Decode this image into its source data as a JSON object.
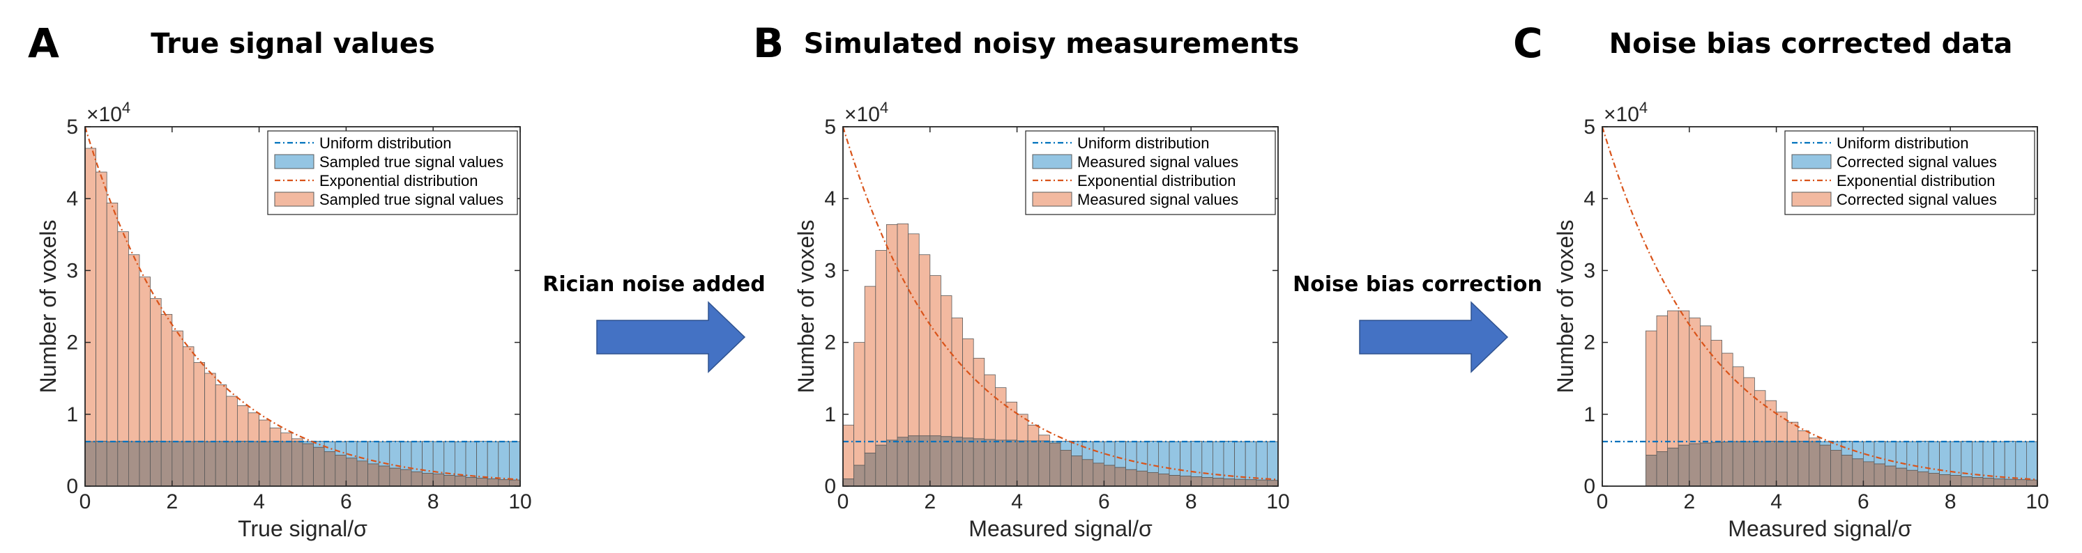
{
  "colors": {
    "uniform_line": "#0072BD",
    "uniform_bar": "#94C5E3",
    "exponential_line": "#D95319",
    "exponential_bar": "#F2B9A0",
    "overlap_bar": "#A69188",
    "arrow": "#4472C4"
  },
  "arrows": [
    {
      "label": "Rician noise added",
      "icon": "right-arrow-icon"
    },
    {
      "label": "Noise bias correction",
      "icon": "right-arrow-icon"
    }
  ],
  "chart_data": [
    {
      "type": "bar",
      "panel_label": "A",
      "title": "True signal values",
      "xlabel": "True signal/σ",
      "ylabel": "Number of voxels",
      "xlim": [
        0,
        10
      ],
      "ylim": [
        0,
        50000
      ],
      "yexponent": "×10",
      "yexponent_power": "4",
      "xticks": [
        "0",
        "2",
        "4",
        "6",
        "8",
        "10"
      ],
      "yticks": [
        "0",
        "1",
        "2",
        "3",
        "4",
        "5"
      ],
      "bin_width": 0.25,
      "x": [
        0.125,
        0.375,
        0.625,
        0.875,
        1.125,
        1.375,
        1.625,
        1.875,
        2.125,
        2.375,
        2.625,
        2.875,
        3.125,
        3.375,
        3.625,
        3.875,
        4.125,
        4.375,
        4.625,
        4.875,
        5.125,
        5.375,
        5.625,
        5.875,
        6.125,
        6.375,
        6.625,
        6.875,
        7.125,
        7.375,
        7.625,
        7.875,
        8.125,
        8.375,
        8.625,
        8.875,
        9.125,
        9.375,
        9.625,
        9.875
      ],
      "series": [
        {
          "name": "Sampled true signal values",
          "kind": "uniform",
          "values": [
            6200,
            6250,
            6180,
            6230,
            6210,
            6190,
            6240,
            6220,
            6200,
            6210,
            6230,
            6190,
            6220,
            6200,
            6250,
            6210,
            6190,
            6230,
            6200,
            6220,
            6210,
            6240,
            6190,
            6200,
            6230,
            6210,
            6220,
            6190,
            6240,
            6200,
            6210,
            6230,
            6200,
            6220,
            6190,
            6210,
            6240,
            6200,
            6220,
            6210
          ]
        },
        {
          "name": "Sampled true signal values",
          "kind": "exponential",
          "values": [
            47000,
            43700,
            39400,
            35400,
            32200,
            29100,
            26100,
            23900,
            21600,
            19400,
            17200,
            15700,
            14100,
            12500,
            11200,
            10200,
            9200,
            8100,
            7400,
            6600,
            5900,
            5400,
            4800,
            4300,
            3900,
            3500,
            3100,
            2800,
            2500,
            2300,
            2000,
            1800,
            1700,
            1500,
            1400,
            1200,
            1100,
            1000,
            900,
            850
          ]
        }
      ],
      "curves": [
        {
          "name": "Uniform distribution",
          "kind": "uniform",
          "constant": 6200
        },
        {
          "name": "Exponential distribution",
          "kind": "exponential",
          "amplitude": 50000,
          "rate": 0.4
        }
      ],
      "legend": [
        "Uniform distribution",
        "Sampled true signal values",
        "Exponential distribution",
        "Sampled true signal values"
      ],
      "legend_position": "top-right"
    },
    {
      "type": "bar",
      "panel_label": "B",
      "title": "Simulated noisy measurements",
      "xlabel": "Measured signal/σ",
      "ylabel": "Number of voxels",
      "xlim": [
        0,
        10
      ],
      "ylim": [
        0,
        50000
      ],
      "yexponent": "×10",
      "yexponent_power": "4",
      "xticks": [
        "0",
        "2",
        "4",
        "6",
        "8",
        "10"
      ],
      "yticks": [
        "0",
        "1",
        "2",
        "3",
        "4",
        "5"
      ],
      "bin_width": 0.25,
      "x": [
        0.125,
        0.375,
        0.625,
        0.875,
        1.125,
        1.375,
        1.625,
        1.875,
        2.125,
        2.375,
        2.625,
        2.875,
        3.125,
        3.375,
        3.625,
        3.875,
        4.125,
        4.375,
        4.625,
        4.875,
        5.125,
        5.375,
        5.625,
        5.875,
        6.125,
        6.375,
        6.625,
        6.875,
        7.125,
        7.375,
        7.625,
        7.875,
        8.125,
        8.375,
        8.625,
        8.875,
        9.125,
        9.375,
        9.625,
        9.875
      ],
      "series": [
        {
          "name": "Measured signal values",
          "kind": "uniform",
          "values": [
            1000,
            2900,
            4600,
            5700,
            6400,
            6800,
            7000,
            7000,
            7000,
            6900,
            6800,
            6700,
            6600,
            6500,
            6400,
            6400,
            6300,
            6300,
            6300,
            6250,
            6250,
            6250,
            6200,
            6200,
            6200,
            6250,
            6200,
            6200,
            6250,
            6200,
            6200,
            6200,
            6250,
            6200,
            6200,
            6250,
            6200,
            6200,
            6200,
            6200
          ]
        },
        {
          "name": "Measured signal values",
          "kind": "exponential",
          "values": [
            8500,
            20000,
            27800,
            32800,
            36400,
            36500,
            35100,
            32200,
            29300,
            26500,
            23400,
            20500,
            17800,
            15500,
            13700,
            11700,
            10000,
            8500,
            7100,
            6000,
            5000,
            4200,
            3700,
            3200,
            2900,
            2600,
            2300,
            2100,
            1900,
            1700,
            1500,
            1400,
            1300,
            1200,
            1100,
            1000,
            950,
            900,
            850,
            800
          ]
        }
      ],
      "curves": [
        {
          "name": "Uniform distribution",
          "kind": "uniform",
          "constant": 6200
        },
        {
          "name": "Exponential distribution",
          "kind": "exponential",
          "amplitude": 50000,
          "rate": 0.4
        }
      ],
      "legend": [
        "Uniform distribution",
        "Measured signal values",
        "Exponential distribution",
        "Measured signal values"
      ],
      "legend_position": "top-right"
    },
    {
      "type": "bar",
      "panel_label": "C",
      "title": "Noise bias corrected data",
      "xlabel": "Measured signal/σ",
      "ylabel": "Number of voxels",
      "xlim": [
        0,
        10
      ],
      "ylim": [
        0,
        50000
      ],
      "yexponent": "×10",
      "yexponent_power": "4",
      "xticks": [
        "0",
        "2",
        "4",
        "6",
        "8",
        "10"
      ],
      "yticks": [
        "0",
        "1",
        "2",
        "3",
        "4",
        "5"
      ],
      "bin_width": 0.25,
      "x": [
        0.125,
        0.375,
        0.625,
        0.875,
        1.125,
        1.375,
        1.625,
        1.875,
        2.125,
        2.375,
        2.625,
        2.875,
        3.125,
        3.375,
        3.625,
        3.875,
        4.125,
        4.375,
        4.625,
        4.875,
        5.125,
        5.375,
        5.625,
        5.875,
        6.125,
        6.375,
        6.625,
        6.875,
        7.125,
        7.375,
        7.625,
        7.875,
        8.125,
        8.375,
        8.625,
        8.875,
        9.125,
        9.375,
        9.625,
        9.875
      ],
      "series": [
        {
          "name": "Corrected signal values",
          "kind": "uniform",
          "values": [
            0,
            0,
            0,
            0,
            4300,
            4800,
            5300,
            5700,
            5900,
            6000,
            6100,
            6150,
            6200,
            6200,
            6200,
            6250,
            6200,
            6200,
            6250,
            6200,
            6200,
            6200,
            6250,
            6200,
            6200,
            6250,
            6200,
            6200,
            6200,
            6250,
            6200,
            6200,
            6200,
            6250,
            6200,
            6200,
            6200,
            6250,
            6200,
            6200
          ]
        },
        {
          "name": "Corrected signal values",
          "kind": "exponential",
          "values": [
            0,
            0,
            0,
            0,
            21600,
            23700,
            24400,
            24400,
            23400,
            22300,
            20300,
            18500,
            16600,
            15100,
            13300,
            11900,
            10300,
            8900,
            7700,
            6700,
            5700,
            5000,
            4300,
            3800,
            3400,
            3100,
            2800,
            2500,
            2200,
            2000,
            1800,
            1600,
            1500,
            1300,
            1200,
            1100,
            1000,
            950,
            900,
            850
          ]
        }
      ],
      "curves": [
        {
          "name": "Uniform distribution",
          "kind": "uniform",
          "constant": 6200
        },
        {
          "name": "Exponential distribution",
          "kind": "exponential",
          "amplitude": 50000,
          "rate": 0.4
        }
      ],
      "legend": [
        "Uniform distribution",
        "Corrected signal values",
        "Exponential distribution",
        "Corrected signal values"
      ],
      "legend_position": "top-right"
    }
  ]
}
